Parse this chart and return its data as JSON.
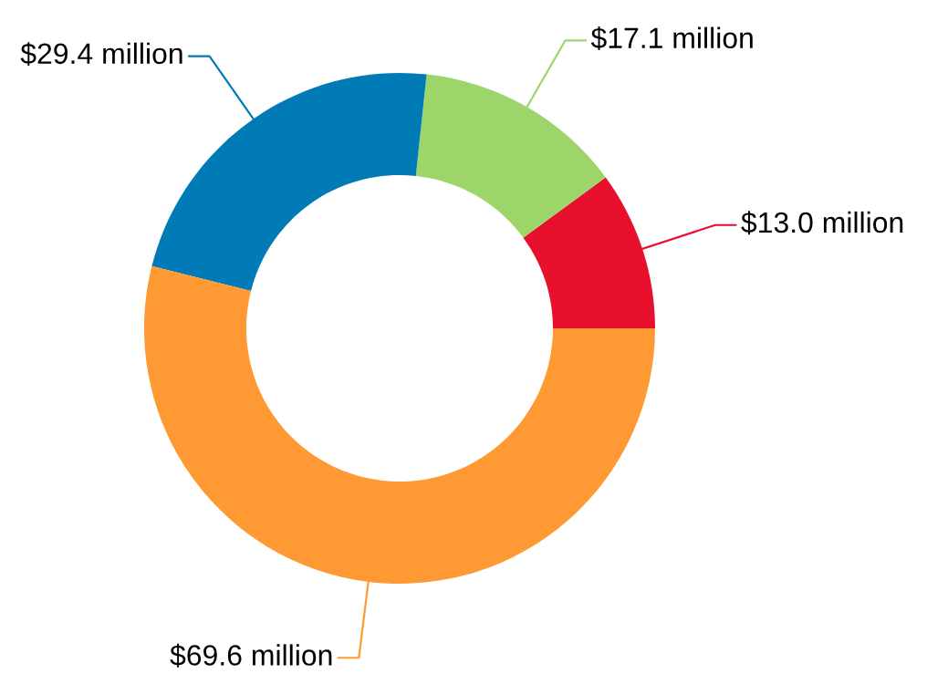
{
  "chart_data": {
    "type": "donut",
    "categories": [
      null,
      null,
      null,
      null
    ],
    "values": [
      13.0,
      17.1,
      29.4,
      69.6
    ],
    "colors": [
      "#e8112d",
      "#9dd56b",
      "#007bb6",
      "#ff9933"
    ],
    "value_labels": [
      "$13.0 million",
      "$17.1 million",
      "$29.4 million",
      "$69.6 million"
    ],
    "legend": false
  }
}
